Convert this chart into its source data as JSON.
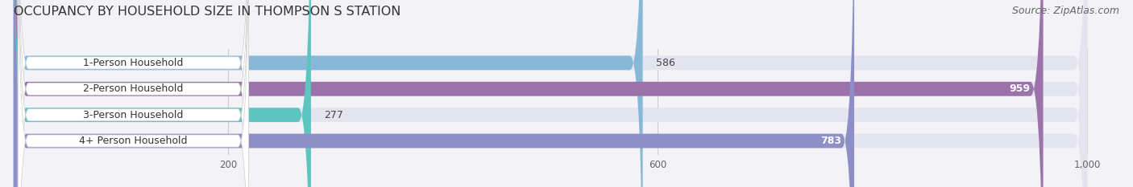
{
  "title": "OCCUPANCY BY HOUSEHOLD SIZE IN THOMPSON S STATION",
  "source": "Source: ZipAtlas.com",
  "categories": [
    "1-Person Household",
    "2-Person Household",
    "3-Person Household",
    "4+ Person Household"
  ],
  "values": [
    586,
    959,
    277,
    783
  ],
  "bar_colors": [
    "#88b8d8",
    "#9b72aa",
    "#5ec4bf",
    "#8e8fc8"
  ],
  "label_colors": [
    "#333333",
    "#ffffff",
    "#333333",
    "#ffffff"
  ],
  "value_text_colors": [
    "#444444",
    "#ffffff",
    "#444444",
    "#ffffff"
  ],
  "xlim_max": 1030,
  "data_max": 1000,
  "xticks": [
    200,
    600,
    1000
  ],
  "xticklabels": [
    "200",
    "600",
    "1,000"
  ],
  "bg_color": "#f2f2f7",
  "bar_bg_color": "#e4e4ee",
  "title_fontsize": 11.5,
  "source_fontsize": 9,
  "label_fontsize": 9,
  "value_fontsize": 9
}
